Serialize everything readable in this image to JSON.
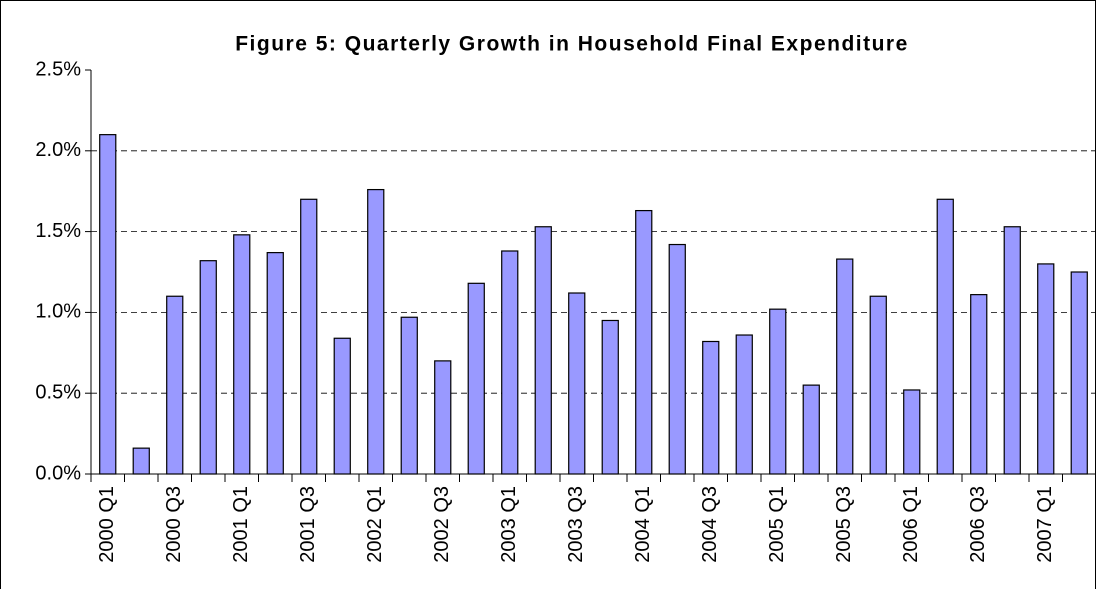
{
  "chart_data": {
    "type": "bar",
    "title": "Figure 5: Quarterly Growth in Household Final Expenditure",
    "categories": [
      "2000 Q1",
      null,
      "2000 Q3",
      null,
      "2001 Q1",
      null,
      "2001 Q3",
      null,
      "2002 Q1",
      null,
      "2002 Q3",
      null,
      "2003 Q1",
      null,
      "2003 Q3",
      null,
      "2004 Q1",
      null,
      "2004 Q3",
      null,
      "2005 Q1",
      null,
      "2005 Q3",
      null,
      "2006 Q1",
      null,
      "2006 Q3",
      null,
      "2007 Q1",
      null
    ],
    "values": [
      2.1,
      0.16,
      1.1,
      1.32,
      1.48,
      1.37,
      1.7,
      0.84,
      1.76,
      0.97,
      0.7,
      1.18,
      1.38,
      1.53,
      1.12,
      0.95,
      1.63,
      1.42,
      0.82,
      0.86,
      1.02,
      0.55,
      1.33,
      1.1,
      0.52,
      1.7,
      1.11,
      1.53,
      1.3,
      1.25
    ],
    "color": "#9999ff",
    "ylim": [
      0,
      2.5
    ],
    "yticks": [
      {
        "value": 0,
        "label": "0.0%"
      },
      {
        "value": 0.5,
        "label": "0.5%"
      },
      {
        "value": 1.0,
        "label": "1.0%"
      },
      {
        "value": 1.5,
        "label": "1.5%"
      },
      {
        "value": 2.0,
        "label": "2.0%"
      },
      {
        "value": 2.5,
        "label": "2.5%"
      }
    ],
    "grid": true
  }
}
